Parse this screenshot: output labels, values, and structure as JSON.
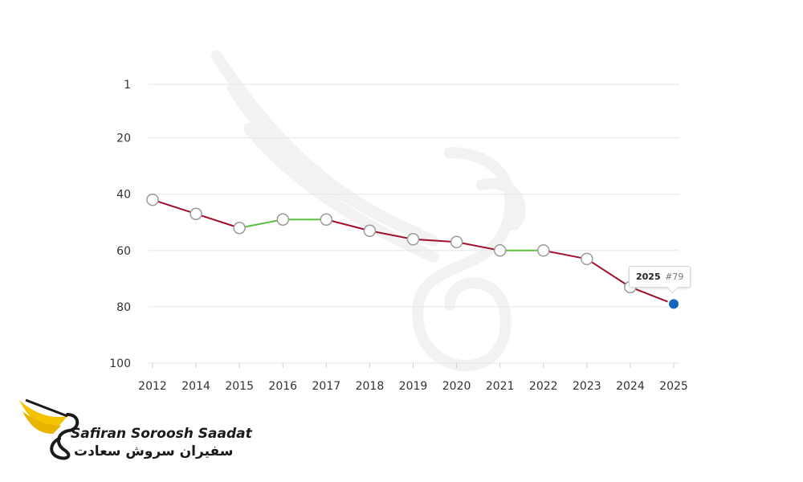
{
  "chart_data": {
    "type": "line",
    "title": "",
    "xlabel": "",
    "ylabel": "",
    "y_reversed": true,
    "ylim": [
      1,
      100
    ],
    "y_ticks": [
      1,
      20,
      40,
      60,
      80,
      100
    ],
    "categories": [
      "2012",
      "2014",
      "2015",
      "2016",
      "2017",
      "2018",
      "2019",
      "2020",
      "2021",
      "2022",
      "2023",
      "2024",
      "2025"
    ],
    "values": [
      42,
      47,
      52,
      49,
      49,
      53,
      56,
      57,
      60,
      60,
      63,
      73,
      79
    ],
    "grid": true,
    "colors": {
      "decline": "#a0102a",
      "improve": "#5cbf3f",
      "highlight": "#1565c0",
      "grid": "#e6e6e6"
    }
  },
  "tooltip": {
    "year": "2025",
    "value": "#79"
  },
  "logo": {
    "name_en": "Safiran Soroosh Saadat",
    "name_fa": "سفیران سروش سعادت"
  }
}
